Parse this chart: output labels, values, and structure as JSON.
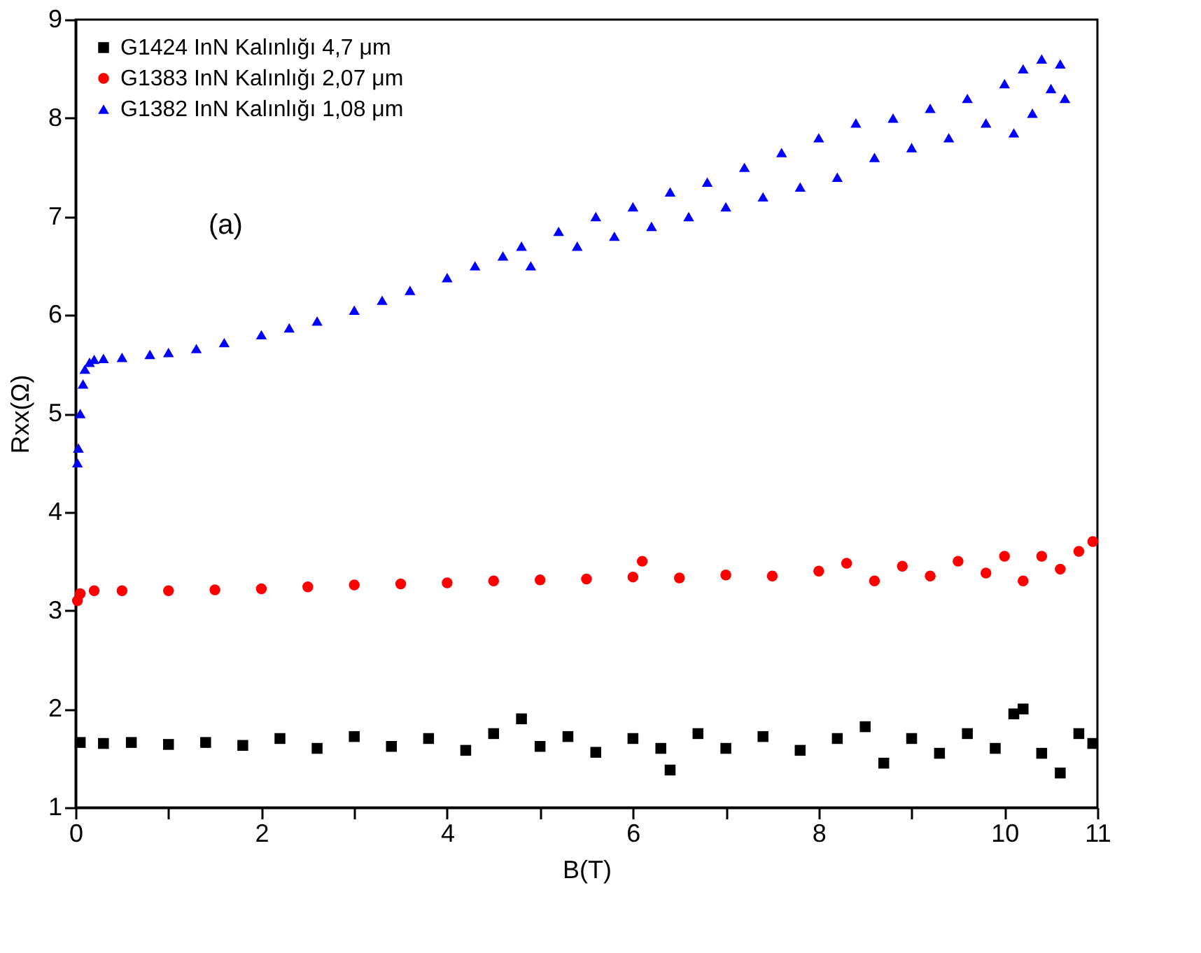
{
  "chart_data": {
    "type": "scatter",
    "xlabel": "B(T)",
    "ylabel": "Rxx(Ω)",
    "xlim": [
      0,
      11
    ],
    "ylim": [
      1,
      9
    ],
    "xticks": [
      0,
      {
        "value": 1,
        "label": null
      },
      2,
      {
        "value": 3,
        "label": null
      },
      4,
      {
        "value": 5,
        "label": null
      },
      6,
      {
        "value": 7,
        "label": null
      },
      8,
      {
        "value": 9,
        "label": null
      },
      10,
      11
    ],
    "yticks": [
      1,
      2,
      3,
      4,
      5,
      6,
      7,
      8,
      9
    ],
    "grid": false,
    "legend": "top left",
    "annotations": [
      "(a)"
    ],
    "series": [
      {
        "name": "G1424 InN Kalınlığı 4,7 μm",
        "color": "#000000",
        "marker": "square",
        "x": [
          0.05,
          0.3,
          0.6,
          1.0,
          1.4,
          1.8,
          2.2,
          2.6,
          3.0,
          3.4,
          3.8,
          4.2,
          4.5,
          4.8,
          5.0,
          5.3,
          5.6,
          6.0,
          6.3,
          6.4,
          6.7,
          7.0,
          7.4,
          7.8,
          8.2,
          8.5,
          8.7,
          9.0,
          9.3,
          9.6,
          9.9,
          10.1,
          10.2,
          10.4,
          10.6,
          10.8,
          10.95
        ],
        "values": [
          1.66,
          1.65,
          1.66,
          1.64,
          1.66,
          1.63,
          1.7,
          1.6,
          1.72,
          1.62,
          1.7,
          1.58,
          1.75,
          1.9,
          1.62,
          1.72,
          1.56,
          1.7,
          1.6,
          1.38,
          1.75,
          1.6,
          1.72,
          1.58,
          1.7,
          1.82,
          1.45,
          1.7,
          1.55,
          1.75,
          1.6,
          1.95,
          2.0,
          1.55,
          1.35,
          1.75,
          1.65
        ]
      },
      {
        "name": "G1383 InN Kalınlığı 2,07 μm",
        "color": "#ff0000",
        "marker": "circle",
        "x": [
          0.02,
          0.05,
          0.2,
          0.5,
          1.0,
          1.5,
          2.0,
          2.5,
          3.0,
          3.5,
          4.0,
          4.5,
          5.0,
          5.5,
          6.0,
          6.1,
          6.5,
          7.0,
          7.5,
          8.0,
          8.3,
          8.6,
          8.9,
          9.2,
          9.5,
          9.8,
          10.0,
          10.2,
          10.4,
          10.6,
          10.8,
          10.95
        ],
        "values": [
          3.1,
          3.17,
          3.2,
          3.2,
          3.2,
          3.21,
          3.22,
          3.24,
          3.26,
          3.27,
          3.28,
          3.3,
          3.31,
          3.32,
          3.34,
          3.5,
          3.33,
          3.36,
          3.35,
          3.4,
          3.48,
          3.3,
          3.45,
          3.35,
          3.5,
          3.38,
          3.55,
          3.3,
          3.55,
          3.42,
          3.6,
          3.7
        ]
      },
      {
        "name": "G1382 InN Kalınlığı 1,08 μm",
        "color": "#0000ff",
        "marker": "triangle",
        "x": [
          0.02,
          0.03,
          0.05,
          0.08,
          0.1,
          0.15,
          0.2,
          0.3,
          0.5,
          0.8,
          1.0,
          1.3,
          1.6,
          2.0,
          2.3,
          2.6,
          3.0,
          3.3,
          3.6,
          4.0,
          4.3,
          4.6,
          4.8,
          4.9,
          5.2,
          5.4,
          5.6,
          5.8,
          6.0,
          6.2,
          6.4,
          6.6,
          6.8,
          7.0,
          7.2,
          7.4,
          7.6,
          7.8,
          8.0,
          8.2,
          8.4,
          8.6,
          8.8,
          9.0,
          9.2,
          9.4,
          9.6,
          9.8,
          10.0,
          10.1,
          10.2,
          10.3,
          10.4,
          10.5,
          10.6,
          10.65
        ],
        "values": [
          4.5,
          4.65,
          5.0,
          5.3,
          5.45,
          5.52,
          5.55,
          5.56,
          5.57,
          5.6,
          5.62,
          5.66,
          5.72,
          5.8,
          5.87,
          5.94,
          6.05,
          6.15,
          6.25,
          6.38,
          6.5,
          6.6,
          6.7,
          6.5,
          6.85,
          6.7,
          7.0,
          6.8,
          7.1,
          6.9,
          7.25,
          7.0,
          7.35,
          7.1,
          7.5,
          7.2,
          7.65,
          7.3,
          7.8,
          7.4,
          7.95,
          7.6,
          8.0,
          7.7,
          8.1,
          7.8,
          8.2,
          7.95,
          8.35,
          7.85,
          8.5,
          8.05,
          8.6,
          8.3,
          8.55,
          8.2
        ]
      }
    ]
  }
}
